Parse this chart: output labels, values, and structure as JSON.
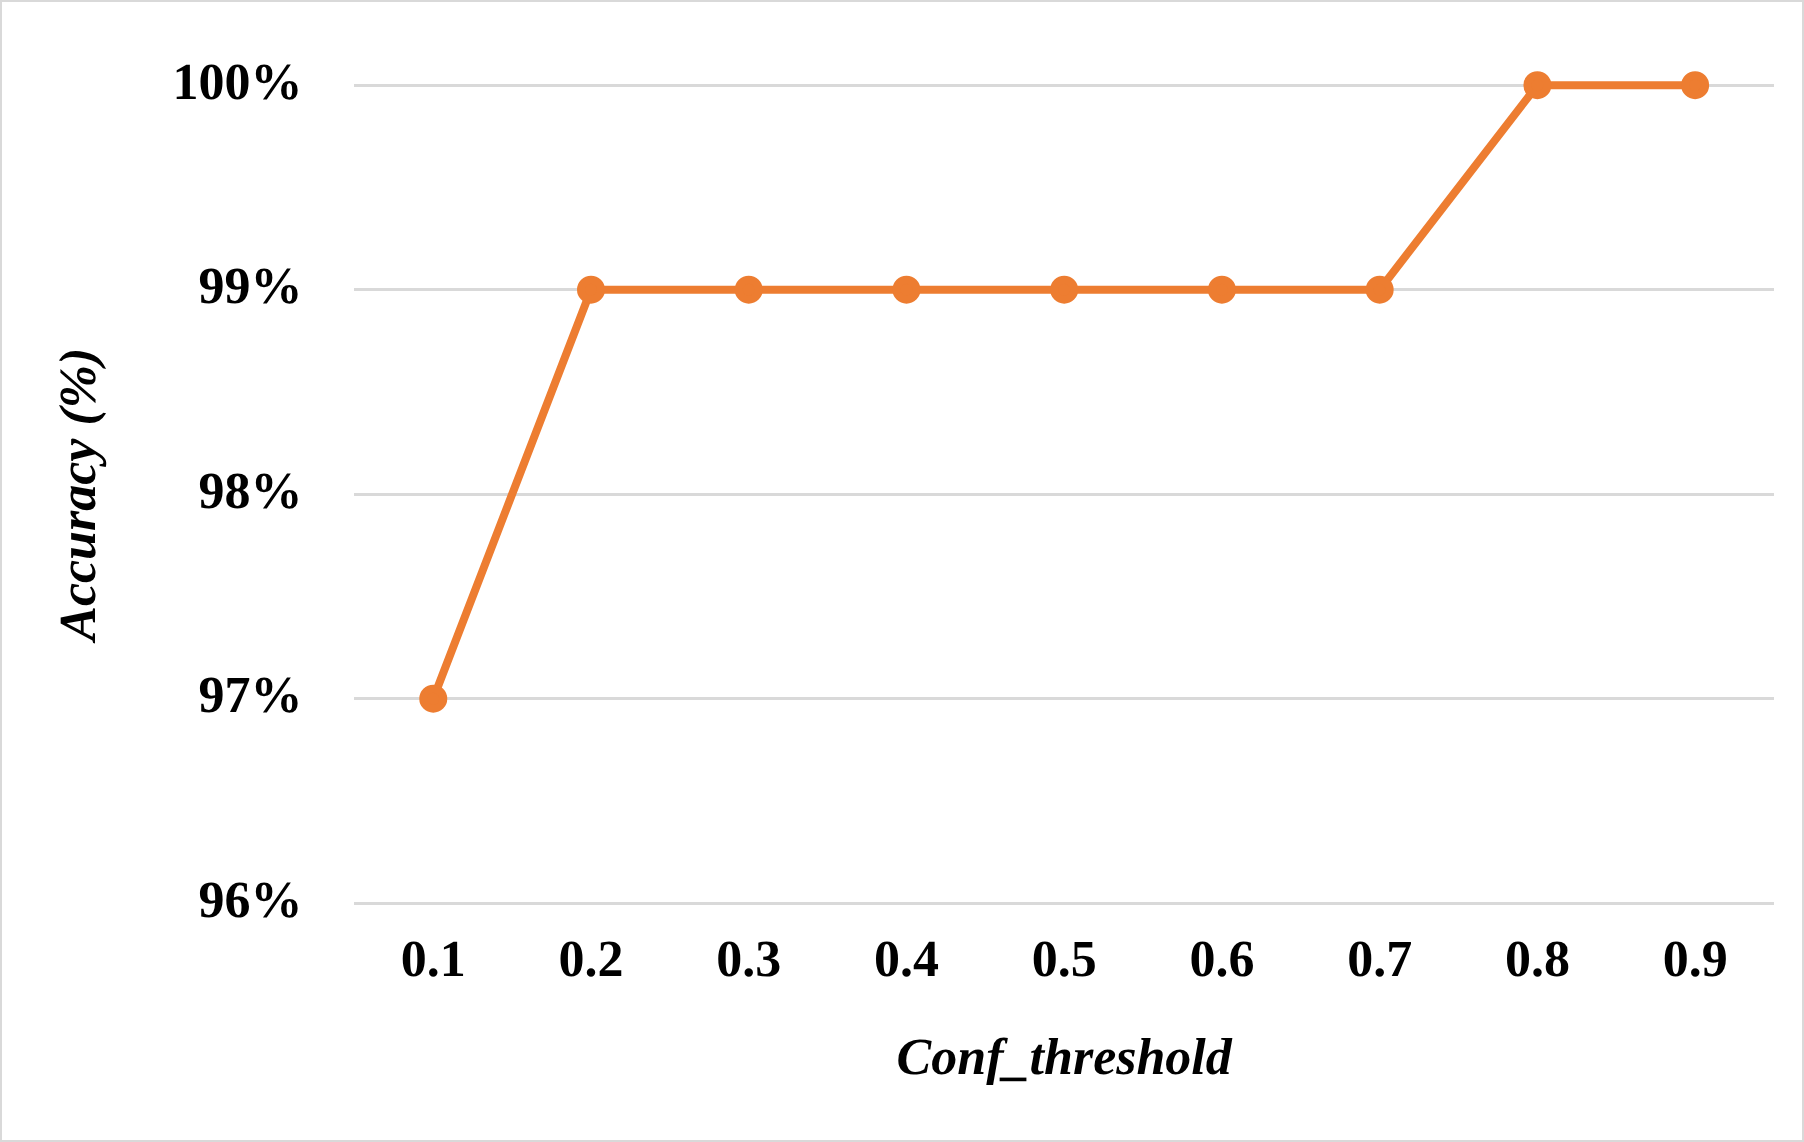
{
  "chart_data": {
    "type": "line",
    "xlabel": "Conf_threshold",
    "ylabel": "Accuracy (%)",
    "categories": [
      "0.1",
      "0.2",
      "0.3",
      "0.4",
      "0.5",
      "0.6",
      "0.7",
      "0.8",
      "0.9"
    ],
    "series": [
      {
        "color": "#ed7d31",
        "values": [
          97,
          99,
          99,
          99,
          99,
          99,
          99,
          100,
          100
        ]
      }
    ],
    "ylim": [
      96,
      100
    ],
    "yticks": [
      {
        "value": 96,
        "label": "96%"
      },
      {
        "value": 97,
        "label": "97%"
      },
      {
        "value": 98,
        "label": "98%"
      },
      {
        "value": 99,
        "label": "99%"
      },
      {
        "value": 100,
        "label": "100%"
      }
    ],
    "grid": "y",
    "legend": false,
    "marker": "circle",
    "line_style": "solid"
  }
}
